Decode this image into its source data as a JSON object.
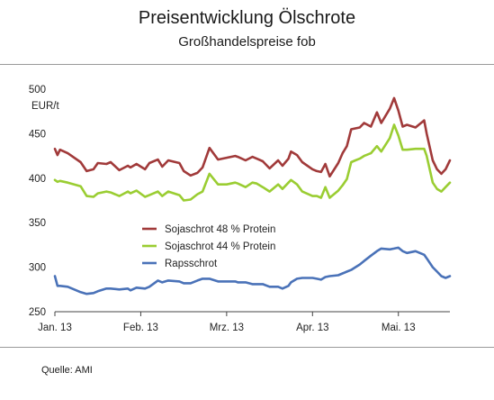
{
  "chart_data": {
    "type": "line",
    "title": "Preisentwicklung Ölschrote",
    "subtitle": "Großhandelspreise fob",
    "ylabel": "EUR/t",
    "ylim": [
      250,
      500
    ],
    "yticks": [
      250,
      300,
      350,
      400,
      450,
      500
    ],
    "xlim": [
      0,
      4.6
    ],
    "xticks": [
      {
        "pos": 0,
        "label": "Jan. 13"
      },
      {
        "pos": 1,
        "label": "Feb. 13"
      },
      {
        "pos": 2,
        "label": "Mrz. 13"
      },
      {
        "pos": 3,
        "label": "Apr. 13"
      },
      {
        "pos": 4,
        "label": "Mai. 13"
      }
    ],
    "legend_position": "center-left",
    "grid": false,
    "series": [
      {
        "name": "Sojaschrot 48 % Protein",
        "color": "#a13a3a",
        "x": [
          0.0,
          0.03,
          0.06,
          0.15,
          0.3,
          0.37,
          0.45,
          0.5,
          0.6,
          0.65,
          0.75,
          0.85,
          0.88,
          0.95,
          1.05,
          1.1,
          1.2,
          1.25,
          1.32,
          1.45,
          1.5,
          1.58,
          1.66,
          1.72,
          1.8,
          1.9,
          2.0,
          2.1,
          2.13,
          2.22,
          2.3,
          2.35,
          2.42,
          2.5,
          2.6,
          2.65,
          2.72,
          2.75,
          2.82,
          2.88,
          3.0,
          3.05,
          3.1,
          3.15,
          3.2,
          3.3,
          3.35,
          3.4,
          3.45,
          3.5,
          3.55,
          3.6,
          3.68,
          3.75,
          3.8,
          3.9,
          3.95,
          4.0,
          4.05,
          4.1,
          4.2,
          4.3,
          4.33,
          4.4,
          4.45,
          4.5,
          4.55,
          4.6
        ],
        "values": [
          433,
          426,
          432,
          428,
          418,
          408,
          410,
          417,
          416,
          418,
          409,
          414,
          412,
          416,
          410,
          417,
          421,
          413,
          420,
          417,
          408,
          403,
          406,
          412,
          434,
          421,
          423,
          425,
          424,
          420,
          424,
          422,
          419,
          411,
          420,
          414,
          422,
          430,
          426,
          418,
          410,
          408,
          407,
          416,
          402,
          417,
          428,
          436,
          455,
          456,
          457,
          462,
          458,
          474,
          462,
          478,
          490,
          476,
          458,
          460,
          457,
          465,
          450,
          420,
          410,
          405,
          410,
          420
        ]
      },
      {
        "name": "Sojaschrot 44 % Protein",
        "color": "#9acd32",
        "x": [
          0.0,
          0.03,
          0.06,
          0.15,
          0.3,
          0.37,
          0.45,
          0.5,
          0.6,
          0.65,
          0.75,
          0.85,
          0.88,
          0.95,
          1.05,
          1.1,
          1.2,
          1.25,
          1.32,
          1.45,
          1.5,
          1.58,
          1.66,
          1.72,
          1.8,
          1.9,
          2.0,
          2.1,
          2.13,
          2.22,
          2.3,
          2.35,
          2.42,
          2.5,
          2.6,
          2.65,
          2.72,
          2.75,
          2.82,
          2.88,
          3.0,
          3.05,
          3.1,
          3.15,
          3.2,
          3.3,
          3.35,
          3.4,
          3.45,
          3.5,
          3.55,
          3.6,
          3.68,
          3.75,
          3.8,
          3.9,
          3.95,
          4.0,
          4.05,
          4.1,
          4.2,
          4.3,
          4.33,
          4.4,
          4.45,
          4.5,
          4.55,
          4.6
        ],
        "values": [
          398,
          396,
          397,
          395,
          391,
          380,
          379,
          383,
          385,
          384,
          380,
          385,
          383,
          386,
          379,
          381,
          385,
          380,
          385,
          381,
          375,
          376,
          382,
          385,
          405,
          393,
          393,
          395,
          394,
          390,
          395,
          394,
          390,
          385,
          393,
          388,
          395,
          398,
          393,
          385,
          380,
          380,
          378,
          390,
          378,
          386,
          392,
          399,
          418,
          420,
          422,
          425,
          428,
          436,
          430,
          445,
          460,
          448,
          432,
          432,
          433,
          433,
          425,
          395,
          388,
          385,
          390,
          395
        ]
      },
      {
        "name": "Rapsschrot",
        "color": "#4a72b8",
        "x": [
          0.0,
          0.03,
          0.06,
          0.15,
          0.3,
          0.37,
          0.45,
          0.5,
          0.6,
          0.65,
          0.75,
          0.85,
          0.88,
          0.95,
          1.05,
          1.1,
          1.2,
          1.25,
          1.32,
          1.45,
          1.5,
          1.58,
          1.66,
          1.72,
          1.8,
          1.9,
          2.0,
          2.1,
          2.13,
          2.22,
          2.3,
          2.35,
          2.42,
          2.5,
          2.6,
          2.65,
          2.72,
          2.75,
          2.82,
          2.88,
          3.0,
          3.05,
          3.1,
          3.15,
          3.2,
          3.3,
          3.35,
          3.4,
          3.45,
          3.5,
          3.55,
          3.6,
          3.68,
          3.75,
          3.8,
          3.9,
          3.95,
          4.0,
          4.05,
          4.1,
          4.2,
          4.3,
          4.33,
          4.4,
          4.45,
          4.5,
          4.55,
          4.6
        ],
        "values": [
          290,
          279,
          279,
          278,
          272,
          270,
          271,
          273,
          276,
          276,
          275,
          276,
          274,
          277,
          276,
          278,
          285,
          283,
          285,
          284,
          282,
          282,
          285,
          287,
          287,
          284,
          284,
          284,
          283,
          283,
          281,
          281,
          281,
          278,
          278,
          276,
          279,
          283,
          287,
          288,
          288,
          287,
          286,
          289,
          290,
          291,
          293,
          295,
          297,
          300,
          303,
          307,
          313,
          318,
          321,
          320,
          321,
          322,
          318,
          316,
          318,
          314,
          310,
          300,
          295,
          290,
          288,
          290
        ]
      }
    ]
  },
  "source": "Quelle: AMI"
}
